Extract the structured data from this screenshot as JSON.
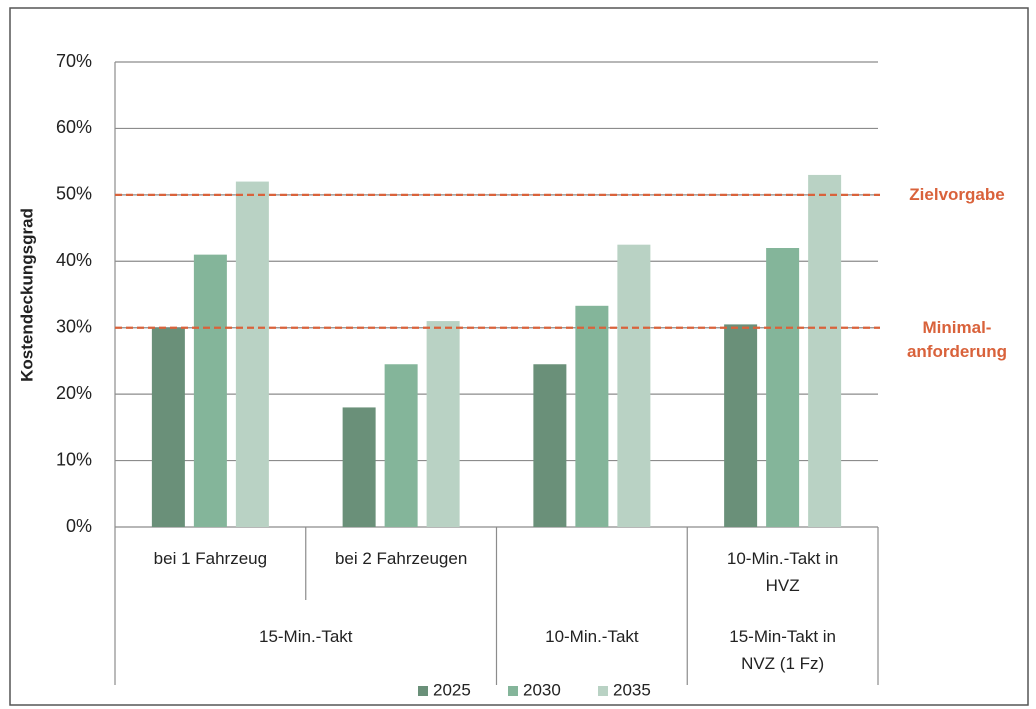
{
  "chart_data": {
    "type": "bar",
    "y_label": "Kostendeckungsgrad",
    "categories": [
      "bei 1 Fahrzeug",
      "bei 2 Fahrzeugen",
      null,
      "10-Min.-Takt in\nHVZ"
    ],
    "category_groups": [
      {
        "label": "15-Min.-Takt",
        "span": 2
      },
      {
        "label": "10-Min.-Takt",
        "span": 1
      },
      {
        "label": "15-Min-Takt in\nNVZ (1 Fz)",
        "span": 1
      }
    ],
    "series": [
      {
        "name": "2025",
        "color": "#6a9079",
        "values": [
          30,
          18,
          24.5,
          30.5
        ]
      },
      {
        "name": "2030",
        "color": "#84b59a",
        "values": [
          41,
          24.5,
          33.3,
          42
        ]
      },
      {
        "name": "2035",
        "color": "#b9d2c4",
        "values": [
          52,
          31,
          42.5,
          53
        ]
      }
    ],
    "ylim": [
      0,
      70
    ],
    "yticks": [
      {
        "value": 0,
        "label": "0%"
      },
      {
        "value": 10,
        "label": "10%"
      },
      {
        "value": 20,
        "label": "20%"
      },
      {
        "value": 30,
        "label": "30%"
      },
      {
        "value": 40,
        "label": "40%"
      },
      {
        "value": 50,
        "label": "50%"
      },
      {
        "value": 60,
        "label": "60%"
      },
      {
        "value": 70,
        "label": "70%"
      }
    ],
    "grid": true,
    "reference_lines": [
      {
        "value": 50,
        "label": "Zielvorgabe",
        "color": "#d9623b"
      },
      {
        "value": 30,
        "label": "Minimal-\nanforderung",
        "color": "#d9623b"
      }
    ],
    "legend": "bottom"
  }
}
